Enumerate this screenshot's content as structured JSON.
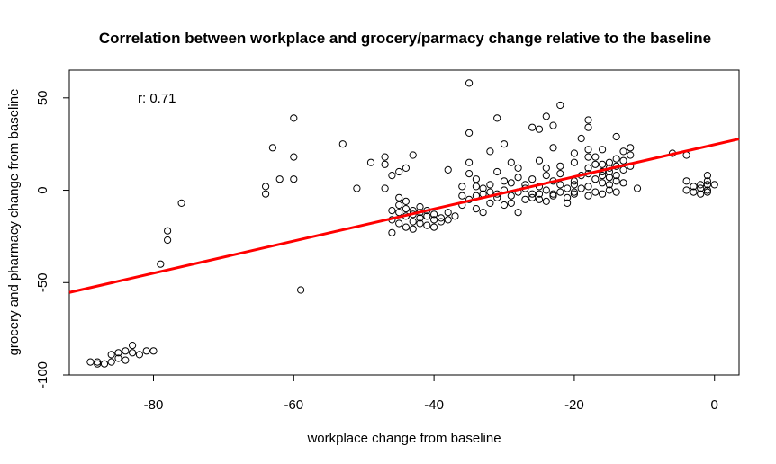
{
  "chart_data": {
    "type": "scatter",
    "title": "Correlation between workplace and grocery/parmacy change relative to the baseline",
    "xlabel": "workplace change from baseline",
    "ylabel": "grocery and pharmacy change from baseline",
    "xlim": [
      -92,
      3.5
    ],
    "ylim": [
      -100,
      65
    ],
    "xticks": [
      -80,
      -60,
      -40,
      -20,
      0
    ],
    "yticks": [
      -100,
      -50,
      0,
      50
    ],
    "xtick_labels": [
      "-80",
      "-60",
      "-40",
      "-20",
      "0"
    ],
    "ytick_labels": [
      "-100",
      "-50",
      "0",
      "50"
    ],
    "annotation": "r: 0.71",
    "regression_line": {
      "slope": 0.87,
      "intercept": 24.7,
      "color": "#ff0000"
    },
    "point_color": "#000000",
    "grid": false,
    "points": [
      [
        -89,
        -93
      ],
      [
        -88,
        -93
      ],
      [
        -88,
        -94
      ],
      [
        -87,
        -94
      ],
      [
        -86,
        -93
      ],
      [
        -86,
        -89
      ],
      [
        -85,
        -91
      ],
      [
        -85,
        -88
      ],
      [
        -84,
        -87
      ],
      [
        -84,
        -92
      ],
      [
        -83,
        -84
      ],
      [
        -83,
        -88
      ],
      [
        -82,
        -89
      ],
      [
        -81,
        -87
      ],
      [
        -80,
        -87
      ],
      [
        -79,
        -40
      ],
      [
        -78,
        -22
      ],
      [
        -78,
        -27
      ],
      [
        -76,
        -7
      ],
      [
        -64,
        2
      ],
      [
        -64,
        -2
      ],
      [
        -63,
        23
      ],
      [
        -62,
        6
      ],
      [
        -60,
        39
      ],
      [
        -60,
        18
      ],
      [
        -60,
        6
      ],
      [
        -59,
        -54
      ],
      [
        -53,
        25
      ],
      [
        -51,
        1
      ],
      [
        -49,
        15
      ],
      [
        -47,
        18
      ],
      [
        -47,
        14
      ],
      [
        -47,
        1
      ],
      [
        -46,
        8
      ],
      [
        -46,
        -23
      ],
      [
        -45,
        10
      ],
      [
        -45,
        -4
      ],
      [
        -44,
        12
      ],
      [
        -43,
        19
      ],
      [
        -46,
        -11
      ],
      [
        -46,
        -16
      ],
      [
        -45,
        -12
      ],
      [
        -45,
        -18
      ],
      [
        -45,
        -8
      ],
      [
        -44,
        -14
      ],
      [
        -44,
        -10
      ],
      [
        -44,
        -20
      ],
      [
        -44,
        -6
      ],
      [
        -43,
        -13
      ],
      [
        -43,
        -17
      ],
      [
        -43,
        -11
      ],
      [
        -43,
        -21
      ],
      [
        -42,
        -15
      ],
      [
        -42,
        -12
      ],
      [
        -42,
        -18
      ],
      [
        -42,
        -9
      ],
      [
        -41,
        -14
      ],
      [
        -41,
        -19
      ],
      [
        -41,
        -11
      ],
      [
        -40,
        -13
      ],
      [
        -40,
        -16
      ],
      [
        -40,
        -20
      ],
      [
        -39,
        -15
      ],
      [
        -39,
        -17
      ],
      [
        -38,
        -12
      ],
      [
        -38,
        -16
      ],
      [
        -37,
        -14
      ],
      [
        -38,
        11
      ],
      [
        -36,
        -8
      ],
      [
        -36,
        -3
      ],
      [
        -35,
        58
      ],
      [
        -35,
        31
      ],
      [
        -35,
        15
      ],
      [
        -35,
        9
      ],
      [
        -35,
        -5
      ],
      [
        -34,
        6
      ],
      [
        -34,
        -10
      ],
      [
        -34,
        2
      ],
      [
        -33,
        -2
      ],
      [
        -33,
        -12
      ],
      [
        -32,
        -7
      ],
      [
        -32,
        -1
      ],
      [
        -32,
        21
      ],
      [
        -31,
        39
      ],
      [
        -31,
        10
      ],
      [
        -31,
        -4
      ],
      [
        -30,
        25
      ],
      [
        -30,
        -8
      ],
      [
        -30,
        5
      ],
      [
        -29,
        15
      ],
      [
        -29,
        -3
      ],
      [
        -29,
        -7
      ],
      [
        -28,
        12
      ],
      [
        -28,
        -12
      ],
      [
        -28,
        7
      ],
      [
        -27,
        1
      ],
      [
        -27,
        -5
      ],
      [
        -26,
        34
      ],
      [
        -26,
        -2
      ],
      [
        -25,
        33
      ],
      [
        -25,
        16
      ],
      [
        -25,
        -5
      ],
      [
        -24,
        40
      ],
      [
        -24,
        12
      ],
      [
        -23,
        35
      ],
      [
        -23,
        23
      ],
      [
        -23,
        -2
      ],
      [
        -22,
        46
      ],
      [
        -22,
        13
      ],
      [
        -22,
        3
      ],
      [
        -21,
        -7
      ],
      [
        -20,
        20
      ],
      [
        -20,
        15
      ],
      [
        -20,
        5
      ],
      [
        -20,
        -1
      ],
      [
        -19,
        28
      ],
      [
        -18,
        38
      ],
      [
        -18,
        34
      ],
      [
        -18,
        22
      ],
      [
        -18,
        18
      ],
      [
        -18,
        9
      ],
      [
        -18,
        2
      ],
      [
        -17,
        18
      ],
      [
        -17,
        -1
      ],
      [
        -16,
        22
      ],
      [
        -16,
        14
      ],
      [
        -16,
        10
      ],
      [
        -16,
        4
      ],
      [
        -15,
        15
      ],
      [
        -15,
        12
      ],
      [
        -15,
        7
      ],
      [
        -15,
        0
      ],
      [
        -14,
        29
      ],
      [
        -14,
        17
      ],
      [
        -14,
        13
      ],
      [
        -14,
        5
      ],
      [
        -13,
        21
      ],
      [
        -13,
        16
      ],
      [
        -13,
        11
      ],
      [
        -13,
        4
      ],
      [
        -12,
        23
      ],
      [
        -12,
        19
      ],
      [
        -12,
        13
      ],
      [
        -11,
        1
      ],
      [
        -36,
        2
      ],
      [
        -34,
        -3
      ],
      [
        -33,
        1
      ],
      [
        -32,
        3
      ],
      [
        -31,
        -2
      ],
      [
        -30,
        0
      ],
      [
        -29,
        4
      ],
      [
        -28,
        -1
      ],
      [
        -27,
        3
      ],
      [
        -26,
        -4
      ],
      [
        -26,
        6
      ],
      [
        -25,
        -2
      ],
      [
        -25,
        2
      ],
      [
        -24,
        -6
      ],
      [
        -24,
        0
      ],
      [
        -24,
        8
      ],
      [
        -23,
        -3
      ],
      [
        -23,
        5
      ],
      [
        -22,
        -1
      ],
      [
        -22,
        9
      ],
      [
        -21,
        1
      ],
      [
        -21,
        -4
      ],
      [
        -20,
        3
      ],
      [
        -20,
        -2
      ],
      [
        -19,
        1
      ],
      [
        -19,
        8
      ],
      [
        -18,
        -3
      ],
      [
        -18,
        12
      ],
      [
        -17,
        6
      ],
      [
        -17,
        14
      ],
      [
        -16,
        -2
      ],
      [
        -16,
        8
      ],
      [
        -15,
        3
      ],
      [
        -15,
        10
      ],
      [
        -14,
        -1
      ],
      [
        -14,
        8
      ],
      [
        -6,
        20
      ],
      [
        -4,
        19
      ],
      [
        -4,
        5
      ],
      [
        -4,
        0
      ],
      [
        -3,
        2
      ],
      [
        -3,
        -1
      ],
      [
        -2,
        3
      ],
      [
        -2,
        -2
      ],
      [
        -2,
        1
      ],
      [
        -1,
        8
      ],
      [
        -1,
        5
      ],
      [
        -1,
        3
      ],
      [
        -1,
        -1
      ],
      [
        -1,
        0
      ],
      [
        0,
        3
      ]
    ]
  }
}
